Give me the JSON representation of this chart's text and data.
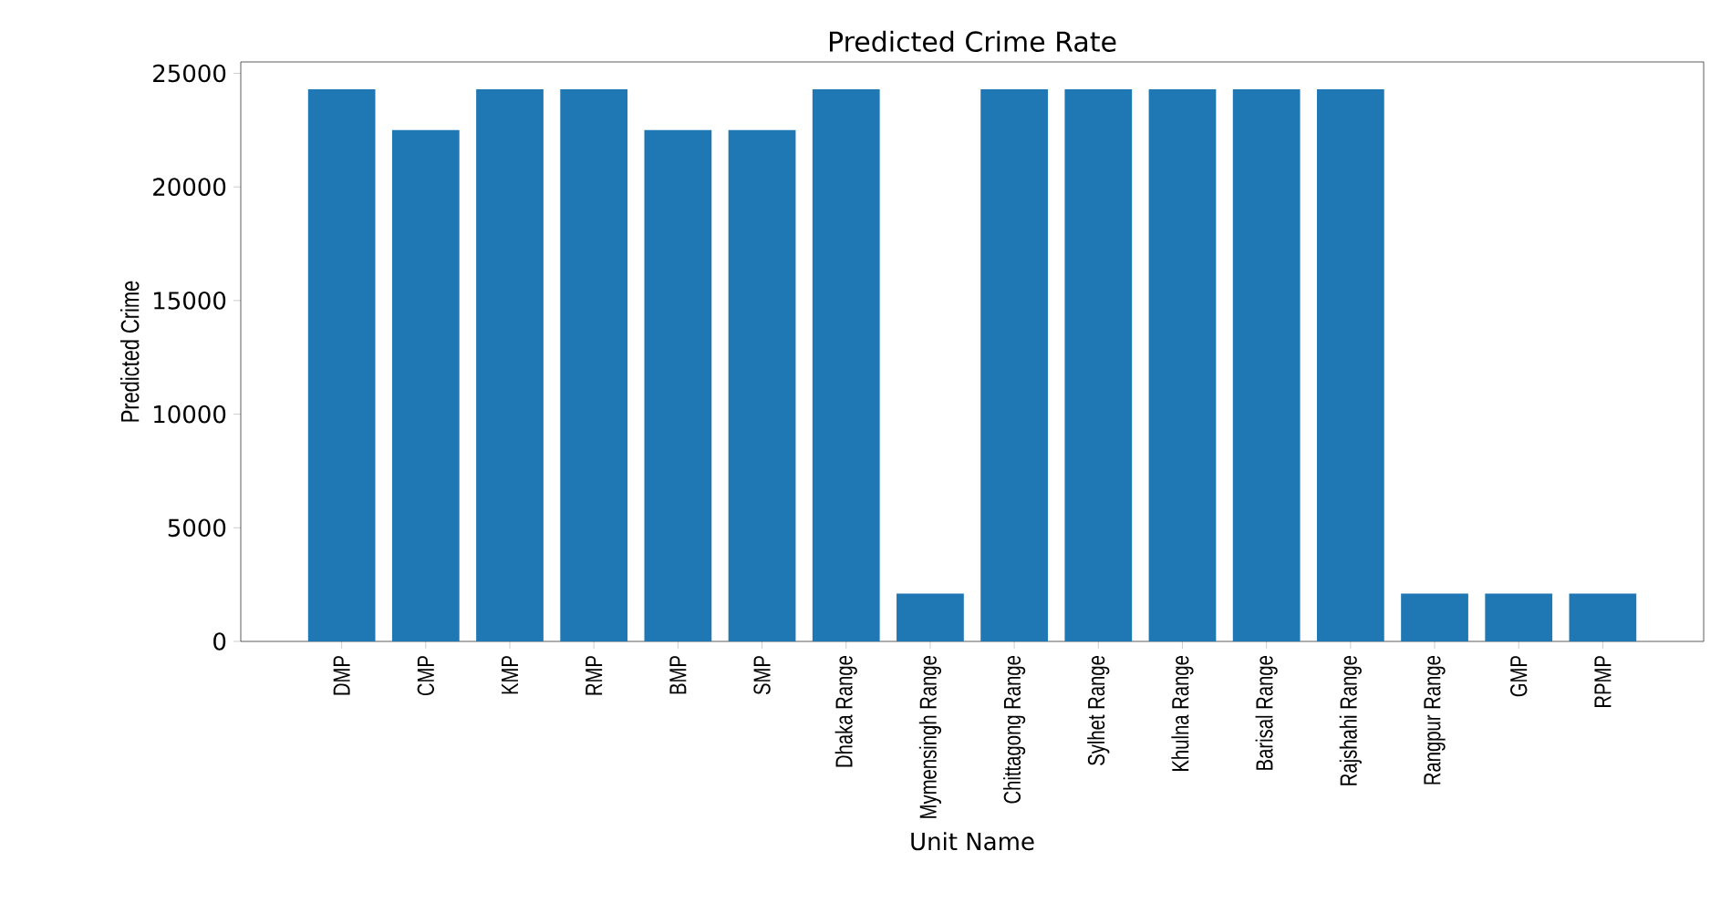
{
  "chart_data": {
    "type": "bar",
    "title": "Predicted Crime Rate",
    "xlabel": "Unit Name",
    "ylabel": "Predicted Crime",
    "categories": [
      "DMP",
      "CMP",
      "KMP",
      "RMP",
      "BMP",
      "SMP",
      "Dhaka Range",
      "Mymensingh Range",
      "Chittagong Range",
      "Sylhet Range",
      "Khulna Range",
      "Barisal Range",
      "Rajshahi Range",
      "Rangpur Range",
      "GMP",
      "RPMP"
    ],
    "values": [
      24300,
      22500,
      24300,
      24300,
      22500,
      22500,
      24300,
      2100,
      24300,
      24300,
      24300,
      24300,
      24300,
      2100,
      2100,
      2100
    ],
    "color": "#1f77b4",
    "ylim": [
      0,
      25500
    ],
    "yticks": [
      0,
      5000,
      10000,
      15000,
      20000,
      25000
    ],
    "grid": false
  }
}
